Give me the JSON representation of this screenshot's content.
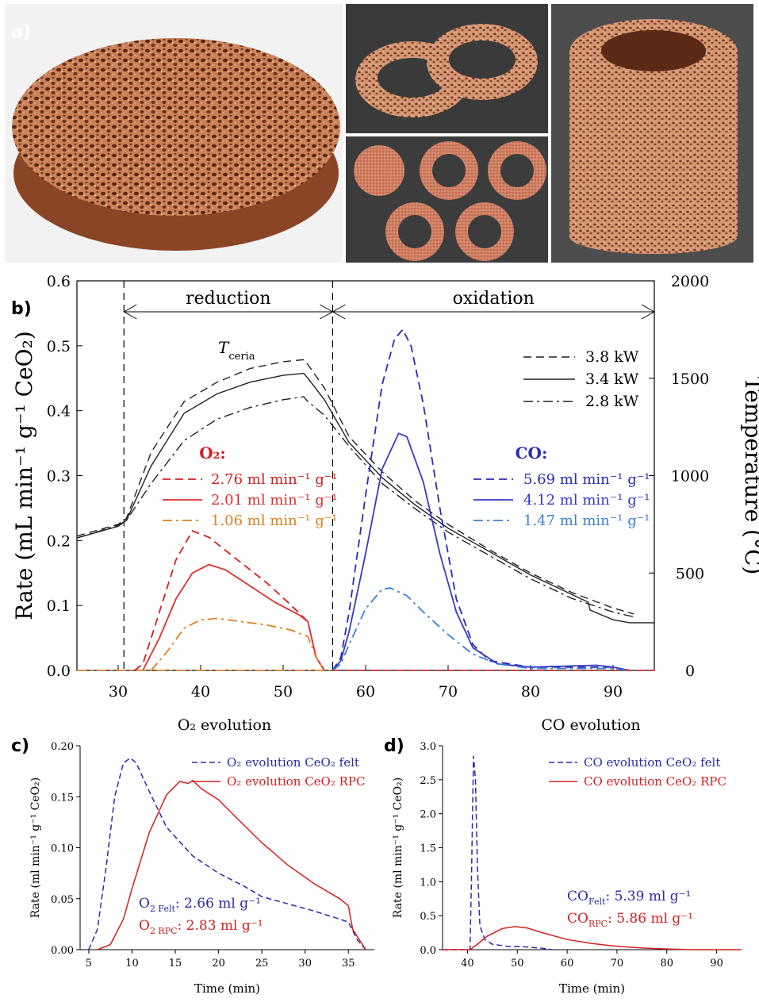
{
  "panels": {
    "a": "a)",
    "b": "b)",
    "c": "c)",
    "d": "d)"
  },
  "photos": [
    {
      "name": "foam-disk"
    },
    {
      "name": "foam-rings"
    },
    {
      "name": "felt-rings-and-disk"
    },
    {
      "name": "foam-cylinder-stack"
    }
  ],
  "chart_data": [
    {
      "type": "line",
      "panel": "b",
      "xlim": [
        25,
        95
      ],
      "xticks": [
        30,
        40,
        50,
        60,
        70,
        80,
        90
      ],
      "ylim": [
        0,
        0.6
      ],
      "yticks": [
        0.0,
        0.1,
        0.2,
        0.3,
        0.4,
        0.5,
        0.6
      ],
      "ytick_labels": [
        "0.0",
        "0.1",
        "0.2",
        "0.3",
        "0.4",
        "0.5",
        "0.6"
      ],
      "ylabel": "Rate (mL min⁻¹ g⁻¹ CeO₂)",
      "y2lim": [
        0,
        2000
      ],
      "y2ticks": [
        0,
        500,
        1000,
        1500,
        2000
      ],
      "y2tick_labels": [
        "0",
        "500",
        "1000",
        "1500",
        "2000"
      ],
      "y2label": "Temperature (°C)",
      "phases": {
        "reduction": "reduction",
        "oxidation": "oxidation",
        "boundaries": [
          30.7,
          56
        ]
      },
      "temp_label": "T",
      "temp_label_sub": "ceria",
      "legend_power": [
        "3.8 kW",
        "3.4 kW",
        "2.8 kW"
      ],
      "o2_title": "O₂:",
      "o2_legend": [
        "2.76 ml min⁻¹ g⁻¹",
        "2.01 ml min⁻¹ g⁻¹",
        "1.06 ml min⁻¹ g⁻¹"
      ],
      "co_title": "CO:",
      "co_legend": [
        "5.69 ml min⁻¹ g⁻¹",
        "4.12 ml min⁻¹ g⁻¹",
        "1.47 ml min⁻¹ g⁻¹"
      ],
      "temperature_series": [
        {
          "name": "3.8 kW",
          "points": [
            [
              25,
              690
            ],
            [
              30,
              750
            ],
            [
              31,
              780
            ],
            [
              34,
              1120
            ],
            [
              38,
              1380
            ],
            [
              42,
              1480
            ],
            [
              46,
              1550
            ],
            [
              50,
              1585
            ],
            [
              52.5,
              1595
            ],
            [
              53,
              1570
            ],
            [
              55,
              1450
            ],
            [
              58,
              1200
            ],
            [
              62,
              1020
            ],
            [
              66,
              870
            ],
            [
              70,
              750
            ],
            [
              75,
              620
            ],
            [
              80,
              500
            ],
            [
              85,
              400
            ],
            [
              90,
              320
            ],
            [
              92.5,
              290
            ]
          ]
        },
        {
          "name": "3.4 kW",
          "points": [
            [
              25,
              680
            ],
            [
              30,
              740
            ],
            [
              31,
              770
            ],
            [
              34,
              1050
            ],
            [
              38,
              1320
            ],
            [
              42,
              1420
            ],
            [
              46,
              1480
            ],
            [
              50,
              1515
            ],
            [
              52.5,
              1525
            ],
            [
              53,
              1500
            ],
            [
              55,
              1390
            ],
            [
              58,
              1170
            ],
            [
              62,
              990
            ],
            [
              66,
              850
            ],
            [
              70,
              730
            ],
            [
              75,
              610
            ],
            [
              80,
              490
            ],
            [
              85,
              390
            ],
            [
              87,
              350
            ],
            [
              87.2,
              310
            ],
            [
              90,
              260
            ],
            [
              92,
              245
            ],
            [
              95,
              245
            ]
          ]
        },
        {
          "name": "2.8 kW",
          "points": [
            [
              25,
              680
            ],
            [
              30,
              745
            ],
            [
              31,
              770
            ],
            [
              34,
              960
            ],
            [
              38,
              1180
            ],
            [
              42,
              1290
            ],
            [
              46,
              1350
            ],
            [
              50,
              1390
            ],
            [
              52.5,
              1405
            ],
            [
              53,
              1380
            ],
            [
              55,
              1310
            ],
            [
              58,
              1150
            ],
            [
              62,
              960
            ],
            [
              66,
              830
            ],
            [
              70,
              710
            ],
            [
              75,
              590
            ],
            [
              80,
              470
            ],
            [
              85,
              370
            ],
            [
              90,
              300
            ],
            [
              92.5,
              275
            ]
          ]
        }
      ],
      "o2_series": [
        {
          "name": "2.76 ml min⁻¹ g⁻¹",
          "points": [
            [
              32,
              0
            ],
            [
              33,
              0.01
            ],
            [
              35,
              0.09
            ],
            [
              37,
              0.17
            ],
            [
              39,
              0.215
            ],
            [
              41,
              0.205
            ],
            [
              44,
              0.175
            ],
            [
              48,
              0.135
            ],
            [
              51,
              0.1
            ],
            [
              53,
              0.075
            ],
            [
              54,
              0.02
            ],
            [
              55,
              0
            ]
          ]
        },
        {
          "name": "2.01 ml min⁻¹ g⁻¹",
          "points": [
            [
              33,
              0
            ],
            [
              35,
              0.05
            ],
            [
              37,
              0.11
            ],
            [
              39,
              0.15
            ],
            [
              41,
              0.163
            ],
            [
              43,
              0.155
            ],
            [
              46,
              0.13
            ],
            [
              49,
              0.105
            ],
            [
              52,
              0.085
            ],
            [
              53,
              0.075
            ],
            [
              54,
              0.02
            ],
            [
              55,
              0
            ]
          ]
        },
        {
          "name": "1.06 ml min⁻¹ g⁻¹",
          "points": [
            [
              34,
              0
            ],
            [
              36,
              0.03
            ],
            [
              38,
              0.065
            ],
            [
              40,
              0.078
            ],
            [
              42,
              0.08
            ],
            [
              45,
              0.075
            ],
            [
              48,
              0.07
            ],
            [
              51,
              0.062
            ],
            [
              53,
              0.052
            ],
            [
              54,
              0.02
            ],
            [
              55,
              0
            ]
          ]
        }
      ],
      "co_series": [
        {
          "name": "5.69 ml min⁻¹ g⁻¹",
          "points": [
            [
              56,
              0
            ],
            [
              57,
              0.02
            ],
            [
              58,
              0.09
            ],
            [
              60,
              0.27
            ],
            [
              62,
              0.44
            ],
            [
              63.5,
              0.51
            ],
            [
              64.5,
              0.525
            ],
            [
              65.5,
              0.5
            ],
            [
              67,
              0.41
            ],
            [
              69,
              0.25
            ],
            [
              71,
              0.11
            ],
            [
              73,
              0.04
            ],
            [
              75,
              0.015
            ],
            [
              80,
              0.005
            ],
            [
              85,
              0.005
            ],
            [
              90,
              0.005
            ],
            [
              92,
              0
            ]
          ]
        },
        {
          "name": "4.12 ml min⁻¹ g⁻¹",
          "points": [
            [
              56,
              0
            ],
            [
              57,
              0.015
            ],
            [
              58,
              0.06
            ],
            [
              60,
              0.18
            ],
            [
              62,
              0.31
            ],
            [
              64,
              0.365
            ],
            [
              65,
              0.36
            ],
            [
              67,
              0.29
            ],
            [
              69,
              0.18
            ],
            [
              71,
              0.09
            ],
            [
              73,
              0.035
            ],
            [
              76,
              0.01
            ],
            [
              80,
              0.005
            ],
            [
              88,
              0.008
            ],
            [
              90,
              0.005
            ],
            [
              92,
              0
            ]
          ]
        },
        {
          "name": "1.47 ml min⁻¹ g⁻¹",
          "points": [
            [
              56,
              0
            ],
            [
              57,
              0.01
            ],
            [
              58,
              0.04
            ],
            [
              60,
              0.095
            ],
            [
              62,
              0.125
            ],
            [
              63,
              0.127
            ],
            [
              65,
              0.115
            ],
            [
              67,
              0.09
            ],
            [
              70,
              0.055
            ],
            [
              73,
              0.025
            ],
            [
              76,
              0.01
            ],
            [
              80,
              0.003
            ],
            [
              90,
              0.003
            ],
            [
              92,
              0
            ]
          ]
        }
      ]
    },
    {
      "type": "line",
      "panel": "c",
      "title": "O₂ evolution",
      "xlabel": "Time (min)",
      "ylabel": "Rate (ml min⁻¹ g⁻¹ CeO₂)",
      "xlim": [
        4,
        38
      ],
      "xticks": [
        5,
        10,
        15,
        20,
        25,
        30,
        35
      ],
      "ylim": [
        0,
        0.2
      ],
      "yticks": [
        0,
        0.05,
        0.1,
        0.15,
        0.2
      ],
      "ytick_labels": [
        "0.00",
        "0.05",
        "0.10",
        "0.15",
        "0.20"
      ],
      "legend": [
        "O₂ evolution CeO₂ felt",
        "O₂ evolution CeO₂ RPC"
      ],
      "annotations": [
        {
          "main": "O",
          "sub": "2 Felt",
          "value": ": 2.66 ml g⁻¹"
        },
        {
          "main": "O",
          "sub": "2 RPC",
          "value": ": 2.83 ml g⁻¹"
        }
      ],
      "series": [
        {
          "name": "O₂ evolution CeO₂ felt",
          "points": [
            [
              5,
              0
            ],
            [
              6,
              0.02
            ],
            [
              7,
              0.08
            ],
            [
              8,
              0.15
            ],
            [
              9,
              0.183
            ],
            [
              9.8,
              0.188
            ],
            [
              10.5,
              0.183
            ],
            [
              12,
              0.155
            ],
            [
              14,
              0.12
            ],
            [
              17,
              0.092
            ],
            [
              20,
              0.075
            ],
            [
              23,
              0.062
            ],
            [
              25,
              0.052
            ],
            [
              28,
              0.045
            ],
            [
              31,
              0.038
            ],
            [
              34,
              0.03
            ],
            [
              35,
              0.027
            ],
            [
              36,
              0.01
            ],
            [
              37,
              0
            ]
          ]
        },
        {
          "name": "O₂ evolution CeO₂ RPC",
          "points": [
            [
              6,
              0
            ],
            [
              7.5,
              0.005
            ],
            [
              9,
              0.03
            ],
            [
              10,
              0.06
            ],
            [
              12,
              0.115
            ],
            [
              14,
              0.152
            ],
            [
              15.5,
              0.165
            ],
            [
              16.5,
              0.163
            ],
            [
              17,
              0.166
            ],
            [
              18,
              0.158
            ],
            [
              20,
              0.147
            ],
            [
              22,
              0.13
            ],
            [
              25,
              0.105
            ],
            [
              28,
              0.083
            ],
            [
              31,
              0.065
            ],
            [
              34,
              0.05
            ],
            [
              35,
              0.043
            ],
            [
              35.5,
              0.02
            ],
            [
              37,
              0
            ]
          ]
        }
      ]
    },
    {
      "type": "line",
      "panel": "d",
      "title": "CO evolution",
      "xlabel": "Time (min)",
      "ylabel": "Rate (ml min⁻¹ g⁻¹ CeO₂)",
      "xlim": [
        35,
        95
      ],
      "xticks": [
        40,
        50,
        60,
        70,
        80,
        90
      ],
      "ylim": [
        0,
        3
      ],
      "yticks": [
        0,
        0.5,
        1,
        1.5,
        2,
        2.5,
        3
      ],
      "ytick_labels": [
        "0.0",
        "0.5",
        "1.0",
        "1.5",
        "2.0",
        "2.5",
        "3.0"
      ],
      "legend": [
        "CO evolution CeO₂ felt",
        "CO evolution CeO₂ RPC"
      ],
      "annotations": [
        {
          "main": "CO",
          "sub": "Felt",
          "value": ": 5.39 ml g⁻¹"
        },
        {
          "main": "CO",
          "sub": "RPC",
          "value": ": 5.86 ml g⁻¹"
        }
      ],
      "series": [
        {
          "name": "CO evolution CeO₂ felt",
          "points": [
            [
              35,
              0
            ],
            [
              40.5,
              0
            ],
            [
              40.8,
              1.0
            ],
            [
              41.2,
              2.85
            ],
            [
              41.6,
              2.5
            ],
            [
              42,
              1.2
            ],
            [
              42.5,
              0.35
            ],
            [
              43.5,
              0.15
            ],
            [
              45,
              0.08
            ],
            [
              48,
              0.05
            ],
            [
              52,
              0.04
            ],
            [
              55,
              0.02
            ],
            [
              57,
              0
            ]
          ]
        },
        {
          "name": "CO evolution CeO₂ RPC",
          "points": [
            [
              35,
              0
            ],
            [
              40.5,
              0
            ],
            [
              42,
              0.08
            ],
            [
              44,
              0.2
            ],
            [
              47,
              0.31
            ],
            [
              49.5,
              0.34
            ],
            [
              52,
              0.32
            ],
            [
              55,
              0.25
            ],
            [
              60,
              0.15
            ],
            [
              65,
              0.09
            ],
            [
              70,
              0.05
            ],
            [
              75,
              0.025
            ],
            [
              80,
              0.01
            ],
            [
              85,
              0
            ],
            [
              95,
              0
            ]
          ]
        }
      ]
    }
  ]
}
